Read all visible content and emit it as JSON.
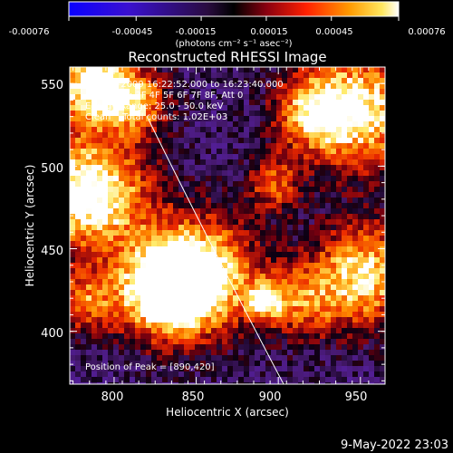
{
  "colorbar": {
    "ticks": [
      "-0.00076",
      "-0.00045",
      "-0.00015",
      "0.00015",
      "0.00045",
      "0.00076"
    ],
    "units": "(photons cm⁻² s⁻¹ asec⁻²)"
  },
  "chart_data": {
    "type": "heatmap",
    "title": "Reconstructed RHESSI Image",
    "xlabel": "Heliocentric X (arcsec)",
    "ylabel": "Heliocentric Y (arcsec)",
    "xlim": [
      773,
      965
    ],
    "ylim": [
      368,
      560
    ],
    "xticks": [
      800,
      850,
      900,
      950
    ],
    "yticks": [
      400,
      450,
      500,
      550
    ],
    "colorscale_range": [
      -0.00076,
      0.00076
    ],
    "peak": [
      890,
      420
    ],
    "info_lines": [
      "21-Dec-2009 16:22:52.000 to 16:23:40.000",
      "Detectors: 3F 4F 5F 6F 7F 8F, Att 0",
      "Energy Range: 25.0 - 50.0 keV",
      "Clean    Total counts: 1.02E+03"
    ],
    "peak_label": "Position of Peak = [890,420]",
    "colors": {
      "negative": "#0000ff",
      "mid": "#000000",
      "positive": "#ff0000",
      "peak": "#ffffff"
    }
  },
  "footer": {
    "date": "9-May-2022 23:03"
  }
}
